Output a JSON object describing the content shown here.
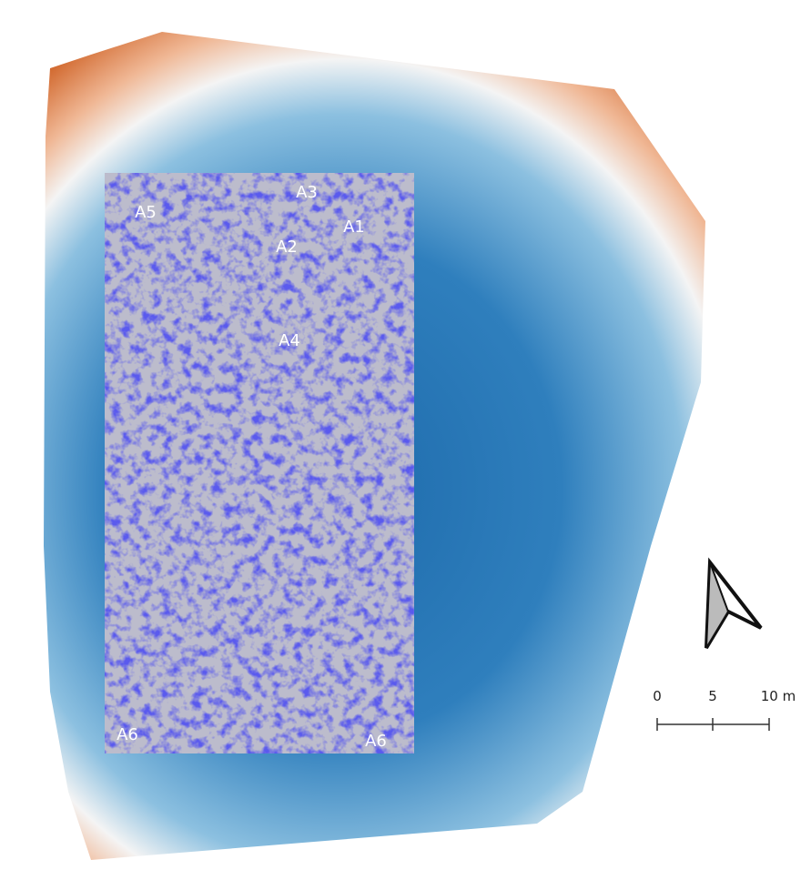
{
  "area_labels": [
    "A1",
    "A2",
    "A3",
    "A4",
    "A5",
    "A6",
    "A6"
  ],
  "scale_bar": {
    "labels": [
      "0",
      "5",
      "10 m"
    ]
  }
}
